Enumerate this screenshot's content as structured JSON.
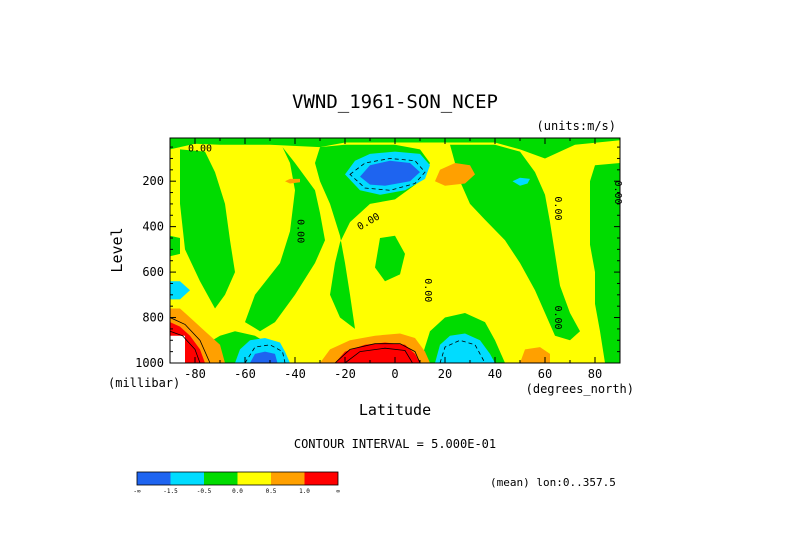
{
  "chart_data": {
    "type": "heatmap",
    "title": "VWND_1961-SON_NCEP",
    "units_label": "(units:m/s)",
    "xlabel": "Latitude",
    "ylabel": "Level",
    "x_unit_label": "(degrees_north)",
    "y_unit_label": "(millibar)",
    "xlim": [
      -90,
      90
    ],
    "ylim": [
      1000,
      10
    ],
    "x_ticks": [
      {
        "value": -80,
        "label": "-80"
      },
      {
        "value": -60,
        "label": "-60"
      },
      {
        "value": -40,
        "label": "-40"
      },
      {
        "value": -20,
        "label": "-20"
      },
      {
        "value": 0,
        "label": "0"
      },
      {
        "value": 20,
        "label": "20"
      },
      {
        "value": 40,
        "label": "40"
      },
      {
        "value": 60,
        "label": "60"
      },
      {
        "value": 80,
        "label": "80"
      }
    ],
    "y_ticks": [
      {
        "value": 200,
        "label": "200"
      },
      {
        "value": 400,
        "label": "400"
      },
      {
        "value": 600,
        "label": "600"
      },
      {
        "value": 800,
        "label": "800"
      },
      {
        "value": 1000,
        "label": "1000"
      }
    ],
    "contour_interval_text": "CONTOUR INTERVAL = 5.000E-01",
    "mean_text": "(mean) lon:0..357.5",
    "contour_labels": [
      {
        "text": "0.00",
        "lat": -78,
        "lev": 70,
        "rot": 0
      },
      {
        "text": "0.00",
        "lat": -39,
        "lev": 420,
        "rot": 90
      },
      {
        "text": "0.00",
        "lat": -10,
        "lev": 390,
        "rot": -30
      },
      {
        "text": "0.00",
        "lat": 12,
        "lev": 680,
        "rot": 90
      },
      {
        "text": "0.00",
        "lat": 64,
        "lev": 320,
        "rot": 90
      },
      {
        "text": "0.00",
        "lat": 64,
        "lev": 800,
        "rot": 90
      },
      {
        "text": "0.00",
        "lat": 88,
        "lev": 250,
        "rot": 90
      }
    ],
    "colorbar": {
      "colors": [
        "#1e64f0",
        "#00dcff",
        "#00dc00",
        "#ffff00",
        "#ffa000",
        "#ff0000"
      ],
      "labels": [
        "-∞",
        "-1.5",
        "-0.5",
        "0.0",
        "0.5",
        "1.0",
        "∞"
      ]
    },
    "regions": [
      {
        "name": "background",
        "color": "#ffff00",
        "points": [
          [
            -90,
            10
          ],
          [
            90,
            10
          ],
          [
            90,
            1000
          ],
          [
            -90,
            1000
          ]
        ]
      },
      {
        "name": "green-top-band",
        "color": "#00dc00",
        "points": [
          [
            -90,
            10
          ],
          [
            90,
            10
          ],
          [
            90,
            20
          ],
          [
            72,
            40
          ],
          [
            60,
            100
          ],
          [
            50,
            60
          ],
          [
            40,
            30
          ],
          [
            -20,
            30
          ],
          [
            -30,
            50
          ],
          [
            -50,
            40
          ],
          [
            -70,
            40
          ],
          [
            -80,
            35
          ],
          [
            -90,
            60
          ]
        ]
      },
      {
        "name": "green-left-column",
        "color": "#00dc00",
        "points": [
          [
            -86,
            60
          ],
          [
            -76,
            70
          ],
          [
            -72,
            160
          ],
          [
            -68,
            300
          ],
          [
            -66,
            460
          ],
          [
            -64,
            600
          ],
          [
            -68,
            700
          ],
          [
            -72,
            760
          ],
          [
            -78,
            640
          ],
          [
            -84,
            500
          ],
          [
            -86,
            300
          ]
        ]
      },
      {
        "name": "green-left-small",
        "color": "#00dc00",
        "points": [
          [
            -90,
            440
          ],
          [
            -86,
            450
          ],
          [
            -86,
            520
          ],
          [
            -90,
            530
          ]
        ]
      },
      {
        "name": "green-center-tongue",
        "color": "#00dc00",
        "points": [
          [
            -45,
            50
          ],
          [
            -40,
            120
          ],
          [
            -32,
            240
          ],
          [
            -30,
            340
          ],
          [
            -28,
            460
          ],
          [
            -32,
            560
          ],
          [
            -40,
            700
          ],
          [
            -48,
            820
          ],
          [
            -54,
            860
          ],
          [
            -60,
            820
          ],
          [
            -56,
            700
          ],
          [
            -46,
            560
          ],
          [
            -42,
            420
          ],
          [
            -40,
            240
          ],
          [
            -42,
            120
          ]
        ]
      },
      {
        "name": "green-mid-upper",
        "color": "#00dc00",
        "points": [
          [
            -30,
            50
          ],
          [
            -20,
            40
          ],
          [
            0,
            40
          ],
          [
            10,
            60
          ],
          [
            14,
            120
          ],
          [
            10,
            200
          ],
          [
            0,
            280
          ],
          [
            -10,
            300
          ],
          [
            -18,
            380
          ],
          [
            -22,
            470
          ],
          [
            -24,
            560
          ],
          [
            -26,
            700
          ],
          [
            -22,
            800
          ],
          [
            -16,
            850
          ],
          [
            -18,
            700
          ],
          [
            -20,
            560
          ],
          [
            -22,
            440
          ],
          [
            -26,
            300
          ],
          [
            -30,
            200
          ],
          [
            -32,
            120
          ]
        ]
      },
      {
        "name": "green-mid-blob",
        "color": "#00dc00",
        "points": [
          [
            -6,
            450
          ],
          [
            0,
            440
          ],
          [
            4,
            520
          ],
          [
            2,
            610
          ],
          [
            -4,
            640
          ],
          [
            -8,
            580
          ]
        ]
      },
      {
        "name": "green-right-column",
        "color": "#00dc00",
        "points": [
          [
            22,
            40
          ],
          [
            40,
            40
          ],
          [
            50,
            70
          ],
          [
            56,
            160
          ],
          [
            60,
            260
          ],
          [
            62,
            380
          ],
          [
            64,
            520
          ],
          [
            66,
            660
          ],
          [
            70,
            780
          ],
          [
            74,
            860
          ],
          [
            70,
            900
          ],
          [
            64,
            880
          ],
          [
            60,
            780
          ],
          [
            56,
            680
          ],
          [
            50,
            560
          ],
          [
            44,
            460
          ],
          [
            36,
            370
          ],
          [
            30,
            300
          ],
          [
            26,
            200
          ],
          [
            24,
            120
          ]
        ]
      },
      {
        "name": "green-right-edge",
        "color": "#00dc00",
        "points": [
          [
            80,
            130
          ],
          [
            90,
            120
          ],
          [
            90,
            1000
          ],
          [
            84,
            1000
          ],
          [
            82,
            860
          ],
          [
            80,
            740
          ],
          [
            80,
            600
          ],
          [
            78,
            480
          ],
          [
            78,
            300
          ],
          [
            78,
            200
          ]
        ]
      },
      {
        "name": "green-bottom-right",
        "color": "#00dc00",
        "points": [
          [
            10,
            1000
          ],
          [
            14,
            860
          ],
          [
            20,
            800
          ],
          [
            28,
            780
          ],
          [
            36,
            820
          ],
          [
            40,
            900
          ],
          [
            44,
            1000
          ]
        ]
      },
      {
        "name": "green-lower-left",
        "color": "#00dc00",
        "points": [
          [
            -80,
            1000
          ],
          [
            -76,
            920
          ],
          [
            -70,
            880
          ],
          [
            -64,
            860
          ],
          [
            -56,
            880
          ],
          [
            -50,
            920
          ],
          [
            -46,
            1000
          ]
        ]
      },
      {
        "name": "blue-jet",
        "color": "#00dcff",
        "points": [
          [
            -20,
            170
          ],
          [
            -16,
            110
          ],
          [
            -10,
            80
          ],
          [
            0,
            70
          ],
          [
            10,
            80
          ],
          [
            14,
            130
          ],
          [
            12,
            190
          ],
          [
            4,
            240
          ],
          [
            -6,
            260
          ],
          [
            -14,
            240
          ]
        ]
      },
      {
        "name": "blue-jet-core",
        "color": "#1e64f0",
        "points": [
          [
            -14,
            180
          ],
          [
            -10,
            130
          ],
          [
            -2,
            110
          ],
          [
            6,
            120
          ],
          [
            10,
            160
          ],
          [
            6,
            200
          ],
          [
            -4,
            220
          ],
          [
            -10,
            215
          ]
        ]
      },
      {
        "name": "cyan-small-right",
        "color": "#00dcff",
        "points": [
          [
            47,
            200
          ],
          [
            50,
            185
          ],
          [
            54,
            190
          ],
          [
            53,
            210
          ],
          [
            50,
            220
          ]
        ]
      },
      {
        "name": "cyan-bottom-left",
        "color": "#00dcff",
        "points": [
          [
            -64,
            1000
          ],
          [
            -62,
            940
          ],
          [
            -58,
            900
          ],
          [
            -52,
            890
          ],
          [
            -46,
            910
          ],
          [
            -44,
            950
          ],
          [
            -42,
            1000
          ]
        ]
      },
      {
        "name": "blue-bottom-left",
        "color": "#1e64f0",
        "points": [
          [
            -58,
            1000
          ],
          [
            -56,
            960
          ],
          [
            -52,
            950
          ],
          [
            -48,
            960
          ],
          [
            -47,
            1000
          ]
        ]
      },
      {
        "name": "cyan-bottom-right",
        "color": "#00dcff",
        "points": [
          [
            16,
            1000
          ],
          [
            18,
            920
          ],
          [
            22,
            880
          ],
          [
            28,
            870
          ],
          [
            34,
            900
          ],
          [
            38,
            960
          ],
          [
            40,
            1000
          ]
        ]
      },
      {
        "name": "cyan-left-edge",
        "color": "#00dcff",
        "points": [
          [
            -90,
            640
          ],
          [
            -86,
            640
          ],
          [
            -82,
            680
          ],
          [
            -86,
            720
          ],
          [
            -90,
            720
          ]
        ]
      },
      {
        "name": "orange-small-top",
        "color": "#ffa000",
        "points": [
          [
            16,
            200
          ],
          [
            18,
            150
          ],
          [
            24,
            120
          ],
          [
            30,
            130
          ],
          [
            32,
            170
          ],
          [
            28,
            210
          ],
          [
            20,
            220
          ]
        ]
      },
      {
        "name": "orange-small-right",
        "color": "#ffa000",
        "points": [
          [
            50,
            1000
          ],
          [
            52,
            940
          ],
          [
            58,
            930
          ],
          [
            62,
            960
          ],
          [
            62,
            1000
          ]
        ]
      },
      {
        "name": "orange-bottom-center",
        "color": "#ffa000",
        "points": [
          [
            -30,
            1000
          ],
          [
            -26,
            940
          ],
          [
            -18,
            900
          ],
          [
            -8,
            880
          ],
          [
            2,
            870
          ],
          [
            8,
            890
          ],
          [
            12,
            950
          ],
          [
            14,
            1000
          ]
        ]
      },
      {
        "name": "red-bottom-center",
        "color": "#ff0000",
        "points": [
          [
            -24,
            1000
          ],
          [
            -20,
            950
          ],
          [
            -12,
            920
          ],
          [
            -4,
            910
          ],
          [
            4,
            920
          ],
          [
            8,
            960
          ],
          [
            10,
            1000
          ]
        ]
      },
      {
        "name": "orange-bottom-left",
        "color": "#ffa000",
        "points": [
          [
            -90,
            760
          ],
          [
            -86,
            760
          ],
          [
            -82,
            800
          ],
          [
            -76,
            860
          ],
          [
            -70,
            920
          ],
          [
            -68,
            1000
          ],
          [
            -90,
            1000
          ]
        ]
      },
      {
        "name": "red-bottom-left",
        "color": "#ff0000",
        "points": [
          [
            -90,
            820
          ],
          [
            -86,
            840
          ],
          [
            -82,
            880
          ],
          [
            -78,
            940
          ],
          [
            -76,
            1000
          ],
          [
            -90,
            1000
          ]
        ]
      },
      {
        "name": "orange-small-top-left",
        "color": "#ffa000",
        "points": [
          [
            -44,
            200
          ],
          [
            -42,
            190
          ],
          [
            -38,
            190
          ],
          [
            -38,
            205
          ],
          [
            -42,
            210
          ]
        ]
      },
      {
        "name": "undefined-bottom-left",
        "color": "#ffffff",
        "points": [
          [
            -90,
            880
          ],
          [
            -84,
            880
          ],
          [
            -84,
            1000
          ],
          [
            -90,
            1000
          ]
        ]
      }
    ],
    "dashed_contours": [
      [
        [
          -18,
          170
        ],
        [
          -12,
          120
        ],
        [
          -2,
          100
        ],
        [
          8,
          110
        ],
        [
          12,
          160
        ],
        [
          8,
          210
        ],
        [
          -2,
          240
        ],
        [
          -12,
          230
        ]
      ],
      [
        [
          -60,
          1000
        ],
        [
          -56,
          930
        ],
        [
          -50,
          920
        ],
        [
          -45,
          950
        ],
        [
          -44,
          1000
        ]
      ],
      [
        [
          18,
          1000
        ],
        [
          20,
          930
        ],
        [
          26,
          900
        ],
        [
          32,
          920
        ],
        [
          36,
          1000
        ]
      ]
    ],
    "solid_contours": [
      [
        [
          -24,
          1000
        ],
        [
          -18,
          940
        ],
        [
          -8,
          915
        ],
        [
          2,
          915
        ],
        [
          8,
          950
        ],
        [
          10,
          1000
        ]
      ],
      [
        [
          -20,
          1000
        ],
        [
          -14,
          950
        ],
        [
          -4,
          935
        ],
        [
          4,
          945
        ],
        [
          7,
          1000
        ]
      ],
      [
        [
          -90,
          800
        ],
        [
          -84,
          830
        ],
        [
          -78,
          900
        ],
        [
          -74,
          1000
        ]
      ],
      [
        [
          -90,
          860
        ],
        [
          -85,
          880
        ],
        [
          -80,
          940
        ],
        [
          -78,
          1000
        ]
      ]
    ]
  }
}
